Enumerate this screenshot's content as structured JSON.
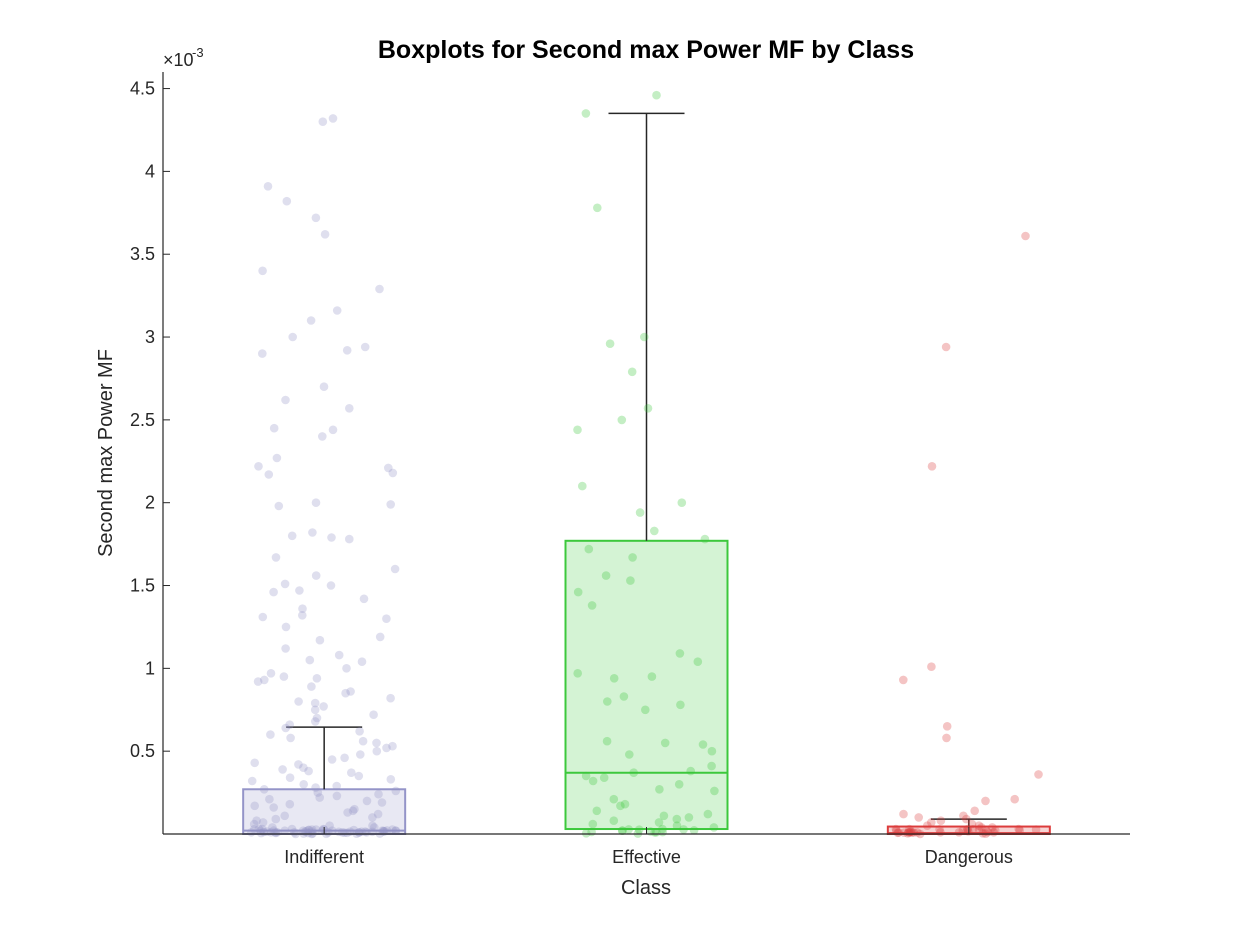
{
  "chart_data": {
    "type": "boxplot",
    "title": "Boxplots for Second max Power MF by Class",
    "xlabel": "Class",
    "ylabel": "Second max Power MF",
    "y_exponent_label": "×10",
    "y_exponent": "-3",
    "ylim": [
      0,
      4.6
    ],
    "yticks": [
      0.5,
      1,
      1.5,
      2,
      2.5,
      3,
      3.5,
      4,
      4.5
    ],
    "ytick_labels": [
      "0.5",
      "1",
      "1.5",
      "2",
      "2.5",
      "3",
      "3.5",
      "4",
      "4.5"
    ],
    "categories": [
      "Indifferent",
      "Effective",
      "Dangerous"
    ],
    "boxes": [
      {
        "name": "Indifferent",
        "color": "#9494c8",
        "q1": 0.0,
        "median": 0.02,
        "q3": 0.27,
        "whisker_low": 0.0,
        "whisker_high": 0.645,
        "points": [
          4.3,
          4.32,
          3.91,
          3.82,
          3.72,
          3.62,
          3.4,
          3.29,
          3.16,
          3.1,
          3.0,
          2.94,
          2.92,
          2.9,
          2.7,
          2.62,
          2.57,
          2.45,
          2.44,
          2.4,
          2.27,
          2.22,
          2.21,
          2.18,
          2.17,
          2.0,
          1.99,
          1.98,
          1.82,
          1.79,
          1.78,
          1.8,
          1.67,
          1.6,
          1.56,
          1.51,
          1.5,
          1.47,
          1.46,
          1.42,
          1.36,
          1.32,
          1.31,
          1.3,
          1.25,
          1.19,
          1.17,
          1.12,
          1.08,
          1.05,
          1.04,
          1.0,
          0.97,
          0.95,
          0.94,
          0.93,
          0.92,
          0.89,
          0.86,
          0.85,
          0.82,
          0.8,
          0.79,
          0.77,
          0.75,
          0.72,
          0.7,
          0.68,
          0.66,
          0.64,
          0.62,
          0.6,
          0.58,
          0.56,
          0.55,
          0.53,
          0.52,
          0.5,
          0.48,
          0.46,
          0.45,
          0.43,
          0.42,
          0.4,
          0.39,
          0.38,
          0.37,
          0.35,
          0.34,
          0.33,
          0.32,
          0.3,
          0.29,
          0.28,
          0.27,
          0.26,
          0.25,
          0.24,
          0.23,
          0.22,
          0.21,
          0.2,
          0.19,
          0.18,
          0.17,
          0.16,
          0.15,
          0.14,
          0.13,
          0.12,
          0.11,
          0.1,
          0.09,
          0.08,
          0.07,
          0.06,
          0.05,
          0.05,
          0.04,
          0.04,
          0.03,
          0.03,
          0.03,
          0.02,
          0.02,
          0.02,
          0.02,
          0.01,
          0.01,
          0.01,
          0.01,
          0.01,
          0.01,
          0.0,
          0.0,
          0.0,
          0.0,
          0.0,
          0.0,
          0.0,
          0.0,
          0.0,
          0.0,
          0.0,
          0.0,
          0.0,
          0.0,
          0.0,
          0.0,
          0.0,
          0.0,
          0.0,
          0.0,
          0.0,
          0.0,
          0.0,
          0.0,
          0.0,
          0.0,
          0.0,
          0.0,
          0.0,
          0.0,
          0.0,
          0.0,
          0.0,
          0.0,
          0.0,
          0.0,
          0.0,
          0.0,
          0.0,
          0.0,
          0.0,
          0.0,
          0.0,
          0.0
        ]
      },
      {
        "name": "Effective",
        "color": "#3cc83c",
        "q1": 0.03,
        "median": 0.37,
        "q3": 1.77,
        "whisker_low": 0.0,
        "whisker_high": 4.35,
        "points": [
          4.46,
          4.35,
          3.78,
          3.0,
          2.96,
          2.79,
          2.57,
          2.5,
          2.44,
          2.1,
          2.0,
          1.94,
          1.83,
          1.78,
          1.72,
          1.67,
          1.56,
          1.53,
          1.46,
          1.38,
          1.09,
          1.04,
          0.97,
          0.95,
          0.94,
          0.83,
          0.8,
          0.78,
          0.75,
          0.56,
          0.55,
          0.54,
          0.5,
          0.48,
          0.41,
          0.38,
          0.37,
          0.35,
          0.34,
          0.32,
          0.3,
          0.27,
          0.26,
          0.21,
          0.18,
          0.17,
          0.14,
          0.12,
          0.11,
          0.1,
          0.09,
          0.08,
          0.07,
          0.06,
          0.05,
          0.04,
          0.03,
          0.02,
          0.02,
          0.01,
          0.01,
          0.0,
          0.0,
          0.0,
          0.0,
          0.0,
          0.0,
          0.0,
          0.0,
          0.0
        ]
      },
      {
        "name": "Dangerous",
        "color": "#dc3c3c",
        "q1": 0.0,
        "median": 0.005,
        "q3": 0.045,
        "whisker_low": 0.0,
        "whisker_high": 0.09,
        "points": [
          3.61,
          2.94,
          2.22,
          1.01,
          0.93,
          0.65,
          0.58,
          0.36,
          0.21,
          0.2,
          0.14,
          0.12,
          0.11,
          0.1,
          0.09,
          0.08,
          0.07,
          0.06,
          0.05,
          0.05,
          0.04,
          0.04,
          0.03,
          0.03,
          0.03,
          0.02,
          0.02,
          0.02,
          0.02,
          0.01,
          0.01,
          0.01,
          0.01,
          0.01,
          0.0,
          0.0,
          0.0,
          0.0,
          0.0,
          0.0,
          0.0,
          0.0,
          0.0,
          0.0,
          0.0,
          0.0,
          0.0,
          0.0,
          0.0,
          0.0,
          0.0,
          0.0,
          0.0,
          0.0,
          0.0
        ]
      }
    ]
  }
}
